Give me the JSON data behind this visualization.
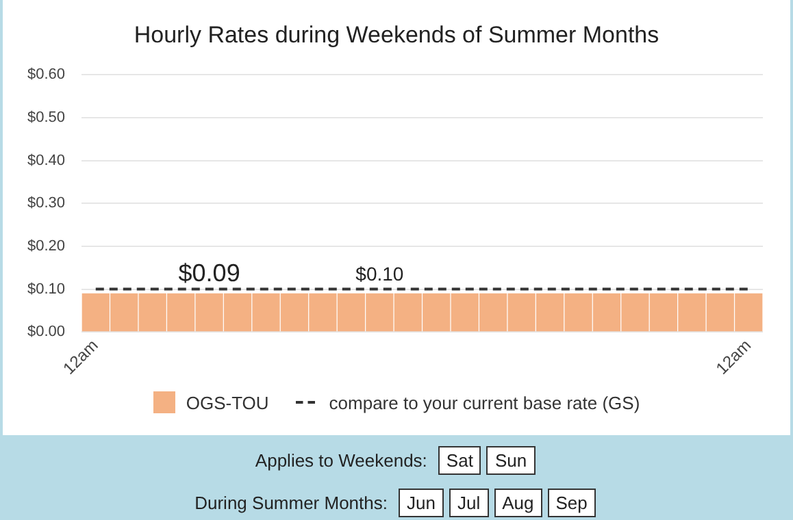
{
  "chart_data": {
    "type": "bar",
    "title": "Hourly Rates during Weekends of Summer Months",
    "categories": [
      "12am",
      null,
      null,
      null,
      null,
      null,
      null,
      null,
      null,
      null,
      null,
      null,
      null,
      null,
      null,
      null,
      null,
      null,
      null,
      null,
      null,
      null,
      null,
      "12am"
    ],
    "series": [
      {
        "name": "OGS-TOU",
        "color": "#f4b183",
        "values": [
          0.09,
          0.09,
          0.09,
          0.09,
          0.09,
          0.09,
          0.09,
          0.09,
          0.09,
          0.09,
          0.09,
          0.09,
          0.09,
          0.09,
          0.09,
          0.09,
          0.09,
          0.09,
          0.09,
          0.09,
          0.09,
          0.09,
          0.09,
          0.09
        ],
        "value_labels": [
          null,
          null,
          null,
          null,
          "$0.09",
          null,
          null,
          null,
          null,
          null,
          null,
          null,
          null,
          null,
          null,
          null,
          null,
          null,
          null,
          null,
          null,
          null,
          null,
          null
        ]
      },
      {
        "name": "compare to your current base rate (GS)",
        "type": "line",
        "color": "#333333",
        "line_style": "dashed",
        "marker": "none",
        "values": [
          0.1,
          0.1,
          0.1,
          0.1,
          0.1,
          0.1,
          0.1,
          0.1,
          0.1,
          0.1,
          0.1,
          0.1,
          0.1,
          0.1,
          0.1,
          0.1,
          0.1,
          0.1,
          0.1,
          0.1,
          0.1,
          0.1,
          0.1,
          0.1
        ],
        "value_labels": [
          null,
          null,
          null,
          null,
          null,
          null,
          null,
          null,
          null,
          null,
          "$0.10",
          null,
          null,
          null,
          null,
          null,
          null,
          null,
          null,
          null,
          null,
          null,
          null,
          null
        ]
      }
    ],
    "ylim": [
      0,
      0.6
    ],
    "yticks": [
      {
        "value": 0,
        "label": "$0.00"
      },
      {
        "value": 0.1,
        "label": "$0.10"
      },
      {
        "value": 0.2,
        "label": "$0.20"
      },
      {
        "value": 0.3,
        "label": "$0.30"
      },
      {
        "value": 0.4,
        "label": "$0.40"
      },
      {
        "value": 0.5,
        "label": "$0.50"
      },
      {
        "value": 0.6,
        "label": "$0.60"
      }
    ],
    "grid": "y",
    "legend": "bottom",
    "annotations": [
      "Applies to Weekends:",
      "Sat",
      "Sun",
      "During Summer Months:",
      "Jun",
      "Jul",
      "Aug",
      "Sep"
    ]
  }
}
